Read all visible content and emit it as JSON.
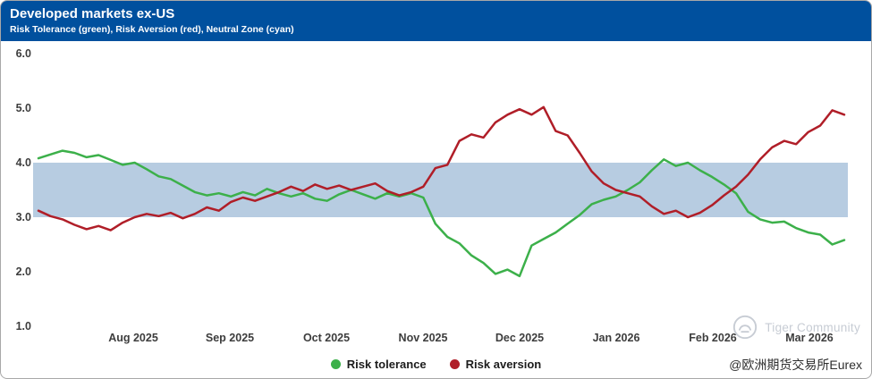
{
  "header": {
    "title": "Developed markets ex-US",
    "subtitle": "Risk Tolerance (green), Risk Aversion (red), Neutral Zone (cyan)"
  },
  "colors": {
    "header_bg": "#00509e",
    "axis_label": "#3d3d3d",
    "neutral_zone": "#b7cce1",
    "risk_tolerance_green": "#3cb04a",
    "risk_aversion_red": "#b01e28"
  },
  "chart_data": {
    "type": "line",
    "title": "Developed markets ex-US",
    "subtitle": "Risk Tolerance (green), Risk Aversion (red), Neutral Zone (cyan)",
    "ylim": [
      1.0,
      6.0
    ],
    "y_ticks": [
      "6.0",
      "5.0",
      "4.0",
      "3.0",
      "2.0",
      "1.0"
    ],
    "x_ticks": [
      "Aug 2025",
      "Sep 2025",
      "Oct 2025",
      "Nov 2025",
      "Dec 2025",
      "Jan 2026",
      "Feb 2026",
      "Mar 2026"
    ],
    "grid": false,
    "legend_position": "bottom",
    "neutral_zone": {
      "from": 3.0,
      "to": 4.0,
      "color": "#b7cce1",
      "label": "Neutral Zone (cyan)"
    },
    "series": [
      {
        "name": "Risk tolerance",
        "color": "#3cb04a",
        "values": [
          4.08,
          4.15,
          4.22,
          4.18,
          4.1,
          4.14,
          4.05,
          3.96,
          4.0,
          3.88,
          3.75,
          3.7,
          3.58,
          3.46,
          3.4,
          3.44,
          3.38,
          3.46,
          3.4,
          3.52,
          3.44,
          3.38,
          3.44,
          3.34,
          3.3,
          3.42,
          3.5,
          3.42,
          3.34,
          3.44,
          3.38,
          3.44,
          3.36,
          2.88,
          2.64,
          2.52,
          2.3,
          2.16,
          1.96,
          2.04,
          1.92,
          2.48,
          2.6,
          2.72,
          2.88,
          3.04,
          3.24,
          3.32,
          3.38,
          3.5,
          3.64,
          3.86,
          4.06,
          3.94,
          4.0,
          3.86,
          3.74,
          3.6,
          3.44,
          3.1,
          2.96,
          2.9,
          2.92,
          2.8,
          2.72,
          2.68,
          2.5,
          2.58
        ]
      },
      {
        "name": "Risk aversion",
        "color": "#b01e28",
        "values": [
          3.12,
          3.02,
          2.96,
          2.86,
          2.78,
          2.84,
          2.76,
          2.9,
          3.0,
          3.06,
          3.02,
          3.08,
          2.98,
          3.06,
          3.18,
          3.12,
          3.28,
          3.36,
          3.3,
          3.38,
          3.46,
          3.56,
          3.48,
          3.6,
          3.52,
          3.58,
          3.5,
          3.56,
          3.62,
          3.48,
          3.4,
          3.46,
          3.56,
          3.9,
          3.96,
          4.4,
          4.52,
          4.46,
          4.74,
          4.88,
          4.98,
          4.88,
          5.02,
          4.58,
          4.5,
          4.18,
          3.84,
          3.62,
          3.5,
          3.44,
          3.38,
          3.2,
          3.06,
          3.12,
          3.0,
          3.08,
          3.22,
          3.4,
          3.56,
          3.78,
          4.06,
          4.28,
          4.4,
          4.34,
          4.56,
          4.68,
          4.96,
          4.88
        ]
      }
    ]
  },
  "legend": {
    "items": [
      {
        "label": "Risk tolerance",
        "color": "#3cb04a"
      },
      {
        "label": "Risk aversion",
        "color": "#b01e28"
      }
    ]
  },
  "watermark": {
    "brand": "Tiger Community",
    "handle": "@欧洲期货交易所Eurex"
  }
}
